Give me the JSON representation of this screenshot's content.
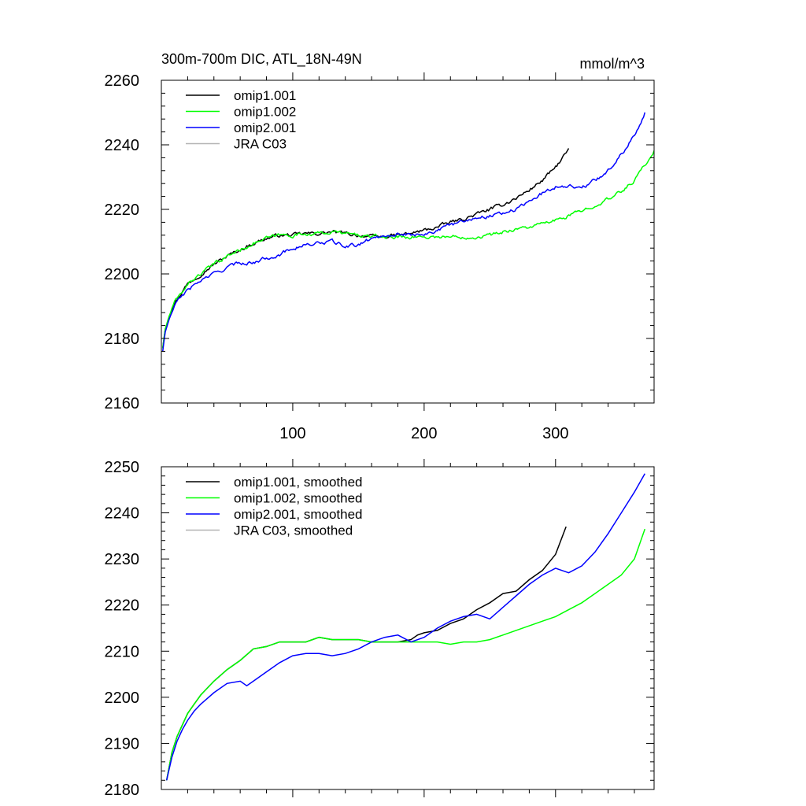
{
  "chart_data": [
    {
      "type": "line",
      "title": "300m-700m DIC, ATL_18N-49N",
      "units": "mmol/m^3",
      "xlabel": "",
      "ylabel": "",
      "xlim": [
        0,
        375
      ],
      "ylim": [
        2160,
        2260
      ],
      "xticks": [
        100,
        200,
        300
      ],
      "yticks": [
        2160,
        2180,
        2200,
        2220,
        2240,
        2260
      ],
      "legend": "top-left",
      "series": [
        {
          "name": "omip1.001",
          "color": "#000000",
          "noisy": true,
          "x": [
            1,
            3,
            6,
            10,
            15,
            20,
            30,
            40,
            50,
            60,
            70,
            80,
            90,
            100,
            110,
            120,
            130,
            140,
            150,
            160,
            170,
            180,
            190,
            200,
            210,
            220,
            230,
            240,
            250,
            260,
            270,
            280,
            290,
            300,
            310
          ],
          "y": [
            2177,
            2183,
            2187,
            2191,
            2194,
            2197,
            2200,
            2203,
            2205.5,
            2207.5,
            2209.5,
            2211,
            2212,
            2212,
            2212.5,
            2212.5,
            2213,
            2212.5,
            2212,
            2211.5,
            2211.5,
            2212,
            2212.5,
            2213.5,
            2214.5,
            2216,
            2217,
            2218.5,
            2220,
            2221.5,
            2223.5,
            2226,
            2229,
            2233,
            2238.5
          ]
        },
        {
          "name": "omip1.002",
          "color": "#00ff00",
          "noisy": true,
          "x": [
            1,
            3,
            6,
            10,
            15,
            20,
            30,
            40,
            50,
            60,
            70,
            80,
            90,
            100,
            110,
            120,
            130,
            140,
            150,
            160,
            170,
            180,
            190,
            200,
            210,
            220,
            230,
            240,
            250,
            260,
            270,
            280,
            290,
            300,
            310,
            320,
            330,
            340,
            350,
            360,
            375
          ],
          "y": [
            2177,
            2183,
            2187,
            2191,
            2194,
            2197,
            2200,
            2203,
            2205.5,
            2207.5,
            2209.5,
            2211,
            2212,
            2212,
            2212.5,
            2212.5,
            2213,
            2212.5,
            2212,
            2211.5,
            2211.5,
            2211.5,
            2211.5,
            2211.5,
            2211.5,
            2211.5,
            2211.5,
            2211.5,
            2212,
            2213,
            2214,
            2214.5,
            2215.5,
            2216.5,
            2218,
            2219.5,
            2221.5,
            2223,
            2225.5,
            2229,
            2238
          ]
        },
        {
          "name": "omip2.001",
          "color": "#0000ff",
          "noisy": true,
          "x": [
            1,
            3,
            6,
            10,
            15,
            20,
            30,
            40,
            50,
            60,
            70,
            80,
            90,
            100,
            110,
            120,
            130,
            140,
            150,
            160,
            170,
            180,
            190,
            200,
            210,
            220,
            230,
            240,
            250,
            260,
            270,
            280,
            290,
            300,
            310,
            320,
            330,
            340,
            350,
            360,
            368
          ],
          "y": [
            2176,
            2182,
            2186,
            2190,
            2193,
            2195,
            2198,
            2200,
            2202,
            2203.5,
            2203.5,
            2205,
            2206,
            2208,
            2209,
            2209.5,
            2210,
            2208.5,
            2209,
            2211,
            2212,
            2212.5,
            2212,
            2212.5,
            2213.5,
            2215,
            2216.5,
            2217.5,
            2218,
            2219,
            2220,
            2222.5,
            2225,
            2227,
            2227.5,
            2226.5,
            2229,
            2232,
            2237,
            2243,
            2250
          ]
        },
        {
          "name": "JRA C03",
          "color": "#b4b4b4",
          "x": [],
          "y": []
        }
      ]
    },
    {
      "type": "line",
      "title": "",
      "units": "",
      "xlabel": "",
      "ylabel": "",
      "xlim": [
        0,
        375
      ],
      "ylim": [
        2180,
        2250
      ],
      "xticks": [
        100,
        200,
        300
      ],
      "yticks": [
        2180,
        2190,
        2200,
        2210,
        2220,
        2230,
        2240,
        2250
      ],
      "legend": "top-left",
      "series": [
        {
          "name": "omip1.001, smoothed",
          "color": "#000000",
          "noisy": false,
          "x": [
            4,
            8,
            12,
            16,
            20,
            25,
            30,
            40,
            50,
            60,
            70,
            80,
            90,
            100,
            110,
            120,
            130,
            140,
            150,
            160,
            170,
            180,
            190,
            195,
            200,
            210,
            220,
            230,
            240,
            250,
            260,
            270,
            280,
            290,
            300,
            308
          ],
          "y": [
            2182,
            2188,
            2191.5,
            2194,
            2196.5,
            2198.5,
            2200.5,
            2203.5,
            2206,
            2208,
            2210.5,
            2211,
            2212,
            2212,
            2212,
            2213,
            2212.5,
            2212.5,
            2212.5,
            2212,
            2212,
            2212,
            2212.5,
            2213.5,
            2214,
            2214.5,
            2216,
            2217,
            2219,
            2220.5,
            2222.5,
            2223,
            2225.5,
            2227.5,
            2231,
            2237
          ]
        },
        {
          "name": "omip1.002, smoothed",
          "color": "#00ff00",
          "noisy": false,
          "x": [
            4,
            8,
            12,
            16,
            20,
            25,
            30,
            40,
            50,
            60,
            70,
            80,
            90,
            100,
            110,
            120,
            130,
            140,
            150,
            160,
            170,
            180,
            190,
            200,
            210,
            220,
            230,
            240,
            250,
            260,
            270,
            280,
            290,
            300,
            310,
            320,
            330,
            340,
            350,
            360,
            368
          ],
          "y": [
            2182,
            2188,
            2191.5,
            2194,
            2196.5,
            2198.5,
            2200.5,
            2203.5,
            2206,
            2208,
            2210.5,
            2211,
            2212,
            2212,
            2212,
            2213,
            2212.5,
            2212.5,
            2212.5,
            2212,
            2212,
            2212,
            2212,
            2212,
            2212,
            2211.5,
            2212,
            2212,
            2212.5,
            2213.5,
            2214.5,
            2215.5,
            2216.5,
            2217.5,
            2219,
            2220.5,
            2222.5,
            2224.5,
            2226.5,
            2230,
            2236.5
          ]
        },
        {
          "name": "omip2.001, smoothed",
          "color": "#0000ff",
          "noisy": false,
          "x": [
            4,
            8,
            12,
            16,
            20,
            25,
            30,
            40,
            50,
            60,
            65,
            70,
            80,
            90,
            100,
            110,
            120,
            130,
            140,
            150,
            160,
            170,
            180,
            190,
            200,
            210,
            220,
            230,
            240,
            250,
            260,
            270,
            280,
            290,
            300,
            310,
            320,
            330,
            340,
            350,
            360,
            368
          ],
          "y": [
            2182,
            2187,
            2190.5,
            2193,
            2195,
            2197,
            2198.5,
            2201,
            2203,
            2203.5,
            2202.5,
            2203.5,
            2205.5,
            2207.5,
            2209,
            2209.5,
            2209.5,
            2209,
            2209.5,
            2210.5,
            2212,
            2213,
            2213.5,
            2212,
            2213,
            2215,
            2216.5,
            2217.5,
            2218,
            2217,
            2219.5,
            2222,
            2224.5,
            2226.5,
            2228,
            2227,
            2228.5,
            2231.5,
            2235.5,
            2240,
            2244.5,
            2248.5
          ]
        },
        {
          "name": "JRA C03, smoothed",
          "color": "#b4b4b4",
          "x": [],
          "y": []
        }
      ]
    }
  ]
}
